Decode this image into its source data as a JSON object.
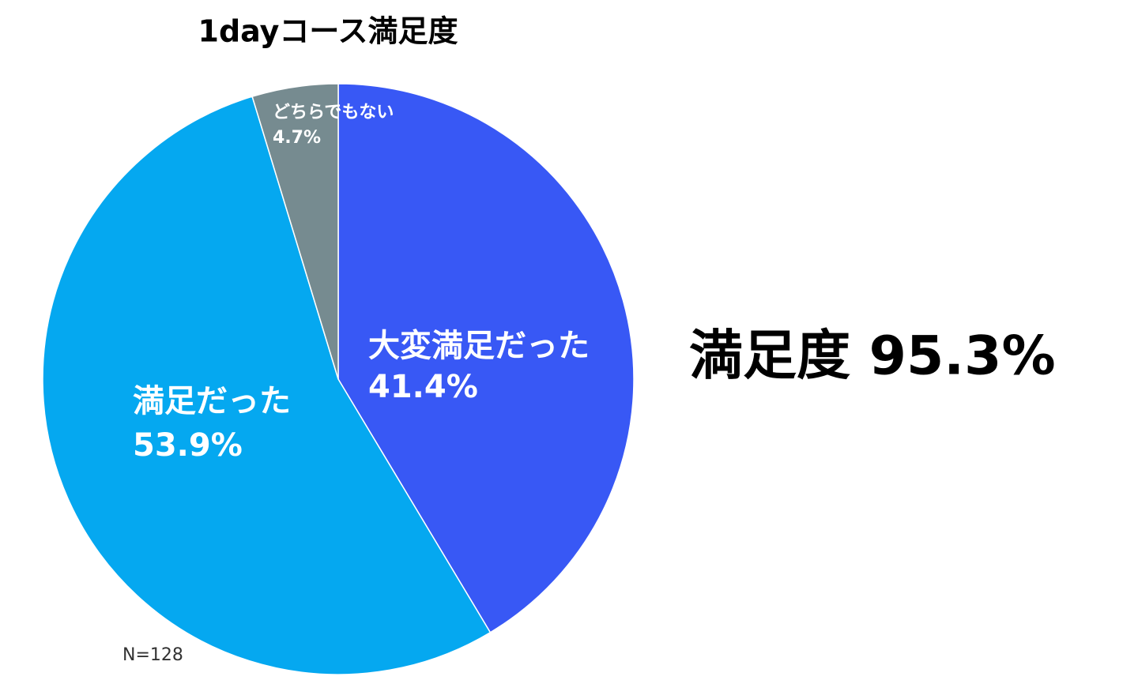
{
  "chart_data": {
    "type": "pie",
    "title": "1dayコース満足度",
    "categories": [
      "大変満足だった",
      "満足だった",
      "どちらでもない"
    ],
    "values": [
      41.4,
      53.9,
      4.7
    ],
    "value_labels": [
      "41.4%",
      "53.9%",
      "4.7%"
    ],
    "colors": [
      "#3858f5",
      "#05a8f0",
      "#768b90"
    ],
    "annotations": [
      "満足度 95.3%",
      "N=128"
    ]
  }
}
